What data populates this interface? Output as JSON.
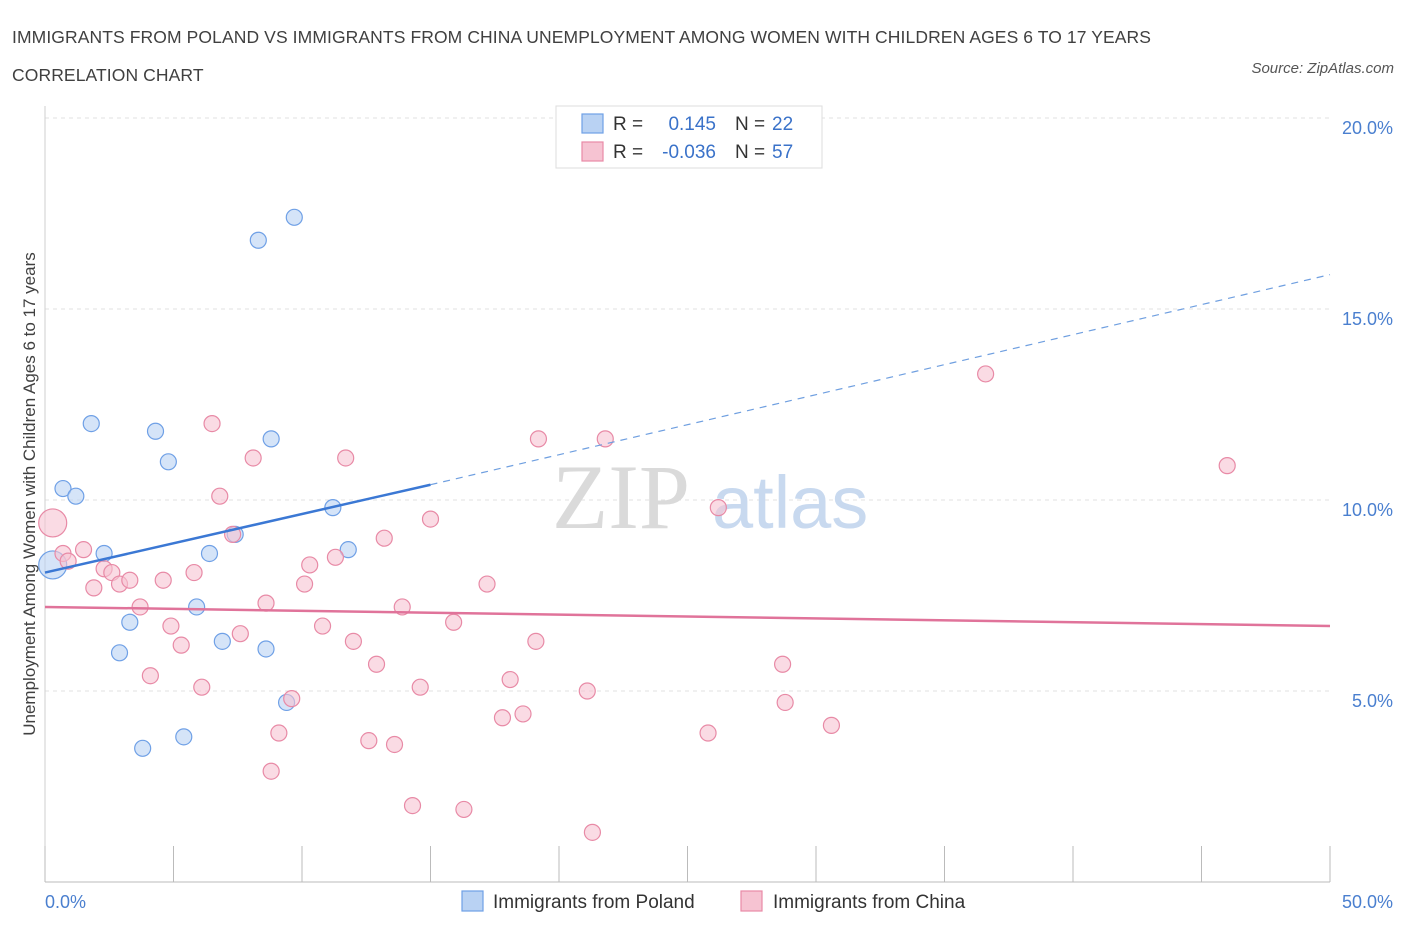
{
  "title": "IMMIGRANTS FROM POLAND VS IMMIGRANTS FROM CHINA UNEMPLOYMENT AMONG WOMEN WITH CHILDREN AGES 6 TO 17 YEARS CORRELATION CHART",
  "source": "Source: ZipAtlas.com",
  "watermark": {
    "zip": "ZIP",
    "atlas": "atlas"
  },
  "legend_top": {
    "r_label": "R =",
    "n_label": "N =",
    "rows": [
      {
        "r": "0.145",
        "n": "22",
        "color": "#6fa0e6"
      },
      {
        "r": "-0.036",
        "n": "57",
        "color": "#e88aa6"
      }
    ]
  },
  "chart_data": {
    "type": "scatter",
    "ylabel": "Unemployment Among Women with Children Ages 6 to 17 years",
    "xlim": [
      0,
      50
    ],
    "ylim": [
      0,
      20
    ],
    "x_tick_labels": [
      "0.0%",
      "50.0%"
    ],
    "y_ticks": [
      5,
      10,
      15,
      20
    ],
    "y_tick_labels": [
      "5.0%",
      "10.0%",
      "15.0%",
      "20.0%"
    ],
    "grid": true,
    "legend_position": "bottom-center",
    "series": [
      {
        "name": "Immigrants from Poland",
        "color": "#6fa0e6",
        "fill": "#b9d2f3",
        "points": [
          [
            0.3,
            8.3
          ],
          [
            0.7,
            10.3
          ],
          [
            1.2,
            10.1
          ],
          [
            1.8,
            12.0
          ],
          [
            2.3,
            8.6
          ],
          [
            3.3,
            6.8
          ],
          [
            2.9,
            6.0
          ],
          [
            3.8,
            3.5
          ],
          [
            4.3,
            11.8
          ],
          [
            4.8,
            11.0
          ],
          [
            5.4,
            3.8
          ],
          [
            5.9,
            7.2
          ],
          [
            6.4,
            8.6
          ],
          [
            6.9,
            6.3
          ],
          [
            7.4,
            9.1
          ],
          [
            8.3,
            16.8
          ],
          [
            8.8,
            11.6
          ],
          [
            8.6,
            6.1
          ],
          [
            9.4,
            4.7
          ],
          [
            9.7,
            17.4
          ],
          [
            11.2,
            9.8
          ],
          [
            11.8,
            8.7
          ]
        ],
        "trend": {
          "x0": 0,
          "y0": 8.1,
          "x1": 15,
          "y1": 10.4,
          "dash_to_x": 50,
          "dash_to_y": 15.9
        }
      },
      {
        "name": "Immigrants from China",
        "color": "#e88aa6",
        "fill": "#f6c3d2",
        "points": [
          [
            0.3,
            9.4
          ],
          [
            0.7,
            8.6
          ],
          [
            0.9,
            8.4
          ],
          [
            1.5,
            8.7
          ],
          [
            1.9,
            7.7
          ],
          [
            2.3,
            8.2
          ],
          [
            2.6,
            8.1
          ],
          [
            2.9,
            7.8
          ],
          [
            3.3,
            7.9
          ],
          [
            3.7,
            7.2
          ],
          [
            4.1,
            5.4
          ],
          [
            4.6,
            7.9
          ],
          [
            4.9,
            6.7
          ],
          [
            5.3,
            6.2
          ],
          [
            5.8,
            8.1
          ],
          [
            6.1,
            5.1
          ],
          [
            6.5,
            12.0
          ],
          [
            6.8,
            10.1
          ],
          [
            7.3,
            9.1
          ],
          [
            7.6,
            6.5
          ],
          [
            8.1,
            11.1
          ],
          [
            8.6,
            7.3
          ],
          [
            8.8,
            2.9
          ],
          [
            9.1,
            3.9
          ],
          [
            9.6,
            4.8
          ],
          [
            10.3,
            8.3
          ],
          [
            10.1,
            7.8
          ],
          [
            10.8,
            6.7
          ],
          [
            11.3,
            8.5
          ],
          [
            11.7,
            11.1
          ],
          [
            12.0,
            6.3
          ],
          [
            12.6,
            3.7
          ],
          [
            12.9,
            5.7
          ],
          [
            13.2,
            9.0
          ],
          [
            13.6,
            3.6
          ],
          [
            13.9,
            7.2
          ],
          [
            14.3,
            2.0
          ],
          [
            14.6,
            5.1
          ],
          [
            15.0,
            9.5
          ],
          [
            15.9,
            6.8
          ],
          [
            16.3,
            1.9
          ],
          [
            17.2,
            7.8
          ],
          [
            17.8,
            4.3
          ],
          [
            18.1,
            5.3
          ],
          [
            18.6,
            4.4
          ],
          [
            19.1,
            6.3
          ],
          [
            19.2,
            11.6
          ],
          [
            21.1,
            5.0
          ],
          [
            21.3,
            1.3
          ],
          [
            21.8,
            11.6
          ],
          [
            25.8,
            3.9
          ],
          [
            26.2,
            9.8
          ],
          [
            28.7,
            5.7
          ],
          [
            28.8,
            4.7
          ],
          [
            30.6,
            4.1
          ],
          [
            36.6,
            13.3
          ],
          [
            46.0,
            10.9
          ]
        ],
        "trend": {
          "x0": 0,
          "y0": 7.2,
          "x1": 50,
          "y1": 6.7
        }
      }
    ]
  }
}
